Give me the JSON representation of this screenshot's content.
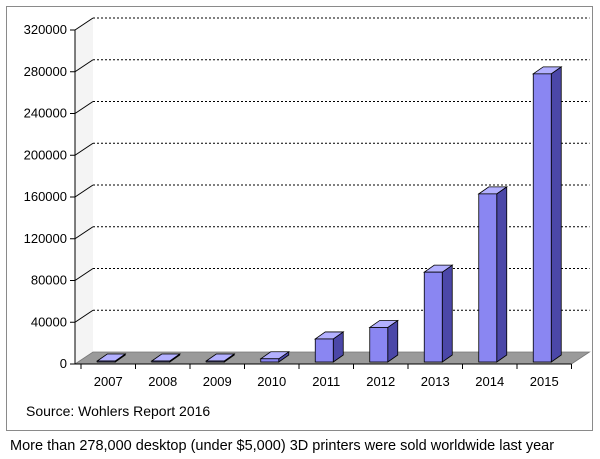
{
  "chart_data": {
    "type": "bar",
    "title": "",
    "xlabel": "",
    "ylabel": "",
    "categories": [
      "2007",
      "2008",
      "2009",
      "2010",
      "2011",
      "2012",
      "2013",
      "2014",
      "2015"
    ],
    "values": [
      500,
      1000,
      2000,
      5000,
      24000,
      35000,
      88000,
      163000,
      278000
    ],
    "ylim": [
      0,
      320000
    ],
    "yticks": [
      "0",
      "40000",
      "80000",
      "120000",
      "160000",
      "200000",
      "240000",
      "280000",
      "320000"
    ],
    "grid": "dotted horizontal",
    "bar_color": "#8a86f2",
    "bar_side_color": "#4b47a8",
    "bar_top_color": "#b3b0ff"
  },
  "source_note": "Source: Wohlers Report 2016",
  "caption": "More than 278,000 desktop (under $5,000) 3D printers were sold worldwide last year"
}
